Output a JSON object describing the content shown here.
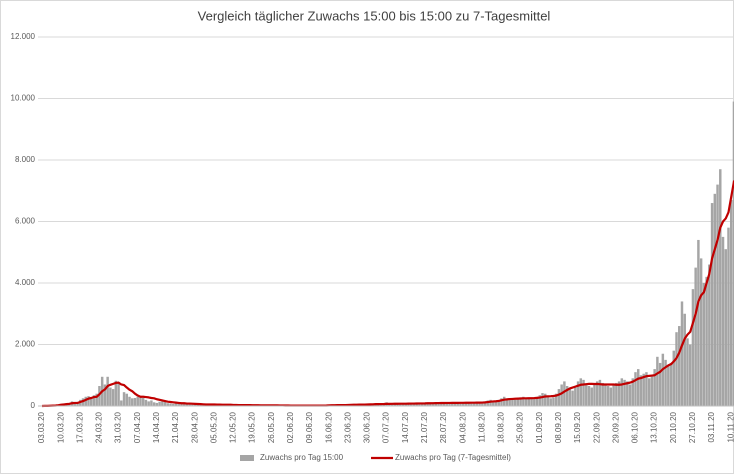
{
  "chart_data": {
    "type": "bar",
    "title": "Vergleich täglicher Zuwachs 15:00 bis 15:00 zu 7-Tagesmittel",
    "categories": [
      "03.03.20",
      null,
      null,
      null,
      null,
      null,
      null,
      "10.03.20",
      null,
      null,
      null,
      null,
      null,
      null,
      "17.03.20",
      null,
      null,
      null,
      null,
      null,
      null,
      "24.03.20",
      null,
      null,
      null,
      null,
      null,
      null,
      "31.03.20",
      null,
      null,
      null,
      null,
      null,
      null,
      "07.04.20",
      null,
      null,
      null,
      null,
      null,
      null,
      "14.04.20",
      null,
      null,
      null,
      null,
      null,
      null,
      "21.04.20",
      null,
      null,
      null,
      null,
      null,
      null,
      "28.04.20",
      null,
      null,
      null,
      null,
      null,
      null,
      "05.05.20",
      null,
      null,
      null,
      null,
      null,
      null,
      "12.05.20",
      null,
      null,
      null,
      null,
      null,
      null,
      "19.05.20",
      null,
      null,
      null,
      null,
      null,
      null,
      "26.05.20",
      null,
      null,
      null,
      null,
      null,
      null,
      "02.06.20",
      null,
      null,
      null,
      null,
      null,
      null,
      "09.06.20",
      null,
      null,
      null,
      null,
      null,
      null,
      "16.06.20",
      null,
      null,
      null,
      null,
      null,
      null,
      "23.06.20",
      null,
      null,
      null,
      null,
      null,
      null,
      "30.06.20",
      null,
      null,
      null,
      null,
      null,
      null,
      "07.07.20",
      null,
      null,
      null,
      null,
      null,
      null,
      "14.07.20",
      null,
      null,
      null,
      null,
      null,
      null,
      "21.07.20",
      null,
      null,
      null,
      null,
      null,
      null,
      "28.07.20",
      null,
      null,
      null,
      null,
      null,
      null,
      "04.08.20",
      null,
      null,
      null,
      null,
      null,
      null,
      "11.08.20",
      null,
      null,
      null,
      null,
      null,
      null,
      "18.08.20",
      null,
      null,
      null,
      null,
      null,
      null,
      "25.08.20",
      null,
      null,
      null,
      null,
      null,
      null,
      "01.09.20",
      null,
      null,
      null,
      null,
      null,
      null,
      "08.09.20",
      null,
      null,
      null,
      null,
      null,
      null,
      "15.09.20",
      null,
      null,
      null,
      null,
      null,
      null,
      "22.09.20",
      null,
      null,
      null,
      null,
      null,
      null,
      "29.09.20",
      null,
      null,
      null,
      null,
      null,
      null,
      "06.10.20",
      null,
      null,
      null,
      null,
      null,
      null,
      "13.10.20",
      null,
      null,
      null,
      null,
      null,
      null,
      "20.10.20",
      null,
      null,
      null,
      null,
      null,
      null,
      "27.10.20",
      null,
      null,
      null,
      null,
      null,
      null,
      "03.11.20",
      null,
      null,
      null,
      null,
      null,
      null,
      "10.11.20",
      null,
      null,
      null
    ],
    "series": [
      {
        "name": "Zuwachs pro Tag 15:00",
        "type": "bar",
        "color": "#a5a5a5",
        "values": [
          0,
          5,
          10,
          10,
          20,
          30,
          40,
          60,
          50,
          90,
          80,
          150,
          120,
          100,
          200,
          250,
          300,
          320,
          280,
          350,
          400,
          650,
          950,
          700,
          950,
          600,
          550,
          820,
          750,
          180,
          450,
          400,
          300,
          250,
          260,
          300,
          320,
          260,
          200,
          150,
          180,
          120,
          100,
          140,
          150,
          130,
          90,
          80,
          70,
          110,
          90,
          80,
          70,
          50,
          60,
          70,
          80,
          60,
          50,
          50,
          40,
          30,
          50,
          60,
          50,
          40,
          40,
          30,
          30,
          40,
          40,
          30,
          30,
          30,
          20,
          20,
          30,
          30,
          30,
          20,
          20,
          20,
          10,
          20,
          30,
          20,
          20,
          20,
          10,
          10,
          20,
          20,
          20,
          20,
          10,
          10,
          10,
          10,
          20,
          20,
          20,
          10,
          10,
          10,
          20,
          30,
          40,
          30,
          30,
          20,
          20,
          40,
          50,
          40,
          50,
          40,
          40,
          30,
          50,
          60,
          70,
          60,
          70,
          50,
          40,
          80,
          120,
          60,
          80,
          70,
          60,
          50,
          80,
          90,
          80,
          100,
          80,
          70,
          60,
          90,
          100,
          110,
          90,
          100,
          90,
          80,
          100,
          110,
          100,
          100,
          110,
          100,
          90,
          110,
          120,
          110,
          100,
          120,
          110,
          100,
          110,
          130,
          150,
          180,
          200,
          160,
          150,
          200,
          250,
          300,
          220,
          260,
          200,
          200,
          250,
          280,
          300,
          250,
          270,
          230,
          220,
          300,
          350,
          420,
          400,
          300,
          250,
          280,
          400,
          550,
          700,
          800,
          650,
          600,
          500,
          600,
          800,
          900,
          850,
          700,
          650,
          600,
          700,
          800,
          850,
          750,
          700,
          650,
          600,
          700,
          750,
          800,
          900,
          850,
          800,
          700,
          900,
          1100,
          1200,
          1000,
          1050,
          1100,
          900,
          1000,
          1200,
          1600,
          1400,
          1700,
          1500,
          1300,
          1400,
          1800,
          2400,
          2600,
          3400,
          3000,
          2200,
          2000,
          3800,
          4500,
          5400,
          4800,
          4000,
          4200,
          4600,
          6600,
          6900,
          7200,
          7700,
          5500,
          5100,
          5800,
          6700,
          9900,
          8950,
          8000
        ]
      },
      {
        "name": "Zuwachs pro Tag (7-Tagesmittel)",
        "type": "line",
        "color": "#c00000",
        "values": [
          0,
          3,
          5,
          8,
          12,
          17,
          25,
          40,
          50,
          60,
          70,
          90,
          100,
          100,
          130,
          160,
          200,
          240,
          260,
          290,
          300,
          380,
          480,
          540,
          650,
          690,
          720,
          750,
          760,
          700,
          680,
          600,
          530,
          480,
          400,
          340,
          300,
          300,
          290,
          280,
          260,
          250,
          220,
          200,
          180,
          160,
          140,
          130,
          120,
          110,
          100,
          90,
          90,
          80,
          80,
          75,
          70,
          65,
          60,
          55,
          50,
          50,
          50,
          50,
          45,
          45,
          40,
          40,
          40,
          40,
          35,
          35,
          30,
          30,
          30,
          30,
          28,
          25,
          25,
          25,
          22,
          22,
          20,
          20,
          20,
          20,
          20,
          18,
          18,
          16,
          16,
          15,
          15,
          15,
          14,
          14,
          14,
          14,
          15,
          15,
          15,
          15,
          15,
          15,
          16,
          20,
          24,
          26,
          28,
          30,
          30,
          30,
          35,
          38,
          40,
          42,
          44,
          45,
          46,
          48,
          52,
          55,
          60,
          62,
          63,
          65,
          70,
          70,
          72,
          73,
          74,
          75,
          75,
          75,
          78,
          80,
          80,
          82,
          83,
          84,
          86,
          90,
          90,
          92,
          94,
          96,
          97,
          98,
          99,
          100,
          101,
          102,
          102,
          103,
          104,
          105,
          106,
          107,
          108,
          109,
          110,
          112,
          118,
          128,
          140,
          148,
          155,
          165,
          185,
          205,
          215,
          225,
          230,
          235,
          240,
          245,
          250,
          250,
          252,
          254,
          257,
          264,
          275,
          290,
          310,
          315,
          318,
          325,
          340,
          370,
          410,
          470,
          520,
          570,
          600,
          630,
          660,
          690,
          700,
          710,
          720,
          720,
          715,
          715,
          710,
          700,
          700,
          700,
          700,
          700,
          690,
          690,
          700,
          720,
          740,
          760,
          790,
          840,
          890,
          910,
          940,
          970,
          980,
          990,
          1000,
          1060,
          1110,
          1200,
          1260,
          1320,
          1360,
          1450,
          1560,
          1730,
          1970,
          2190,
          2320,
          2410,
          2700,
          3000,
          3400,
          3600,
          3700,
          4000,
          4300,
          4800,
          5100,
          5400,
          5800,
          6000,
          6100,
          6300,
          6800,
          7300,
          7400,
          7500
        ]
      }
    ],
    "ylim": [
      0,
      12000
    ],
    "yticks": [
      0,
      {
        "value": 2000,
        "label": "2.000"
      },
      {
        "value": 4000,
        "label": "4.000"
      },
      {
        "value": 6000,
        "label": "6.000"
      },
      {
        "value": 8000,
        "label": "8.000"
      },
      {
        "value": 10000,
        "label": "10.000"
      },
      {
        "value": 12000,
        "label": "12.000"
      }
    ],
    "grid": true,
    "legend": "bottom"
  }
}
